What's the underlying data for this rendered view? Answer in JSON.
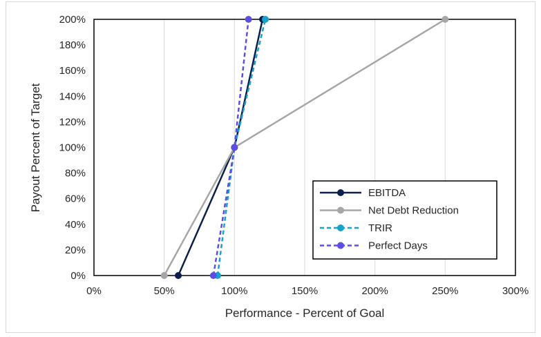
{
  "chart_data": {
    "type": "line",
    "xlabel": "Performance - Percent of Goal",
    "ylabel": "Payout Percent of Target",
    "xlim": [
      0,
      300
    ],
    "ylim": [
      0,
      200
    ],
    "x_ticks": [
      "0%",
      "50%",
      "100%",
      "150%",
      "200%",
      "250%",
      "300%"
    ],
    "y_ticks": [
      "0%",
      "20%",
      "40%",
      "60%",
      "80%",
      "100%",
      "120%",
      "140%",
      "160%",
      "180%",
      "200%"
    ],
    "grid": "vertical",
    "legend_position": "bottom-right",
    "series": [
      {
        "name": "EBITDA",
        "color": "#0b1f4d",
        "dashed": false,
        "points": [
          [
            60,
            0
          ],
          [
            100,
            100
          ],
          [
            120,
            200
          ]
        ]
      },
      {
        "name": "Net Debt Reduction",
        "color": "#a6a6a6",
        "dashed": false,
        "points": [
          [
            50,
            0
          ],
          [
            100,
            100
          ],
          [
            250,
            200
          ]
        ]
      },
      {
        "name": "TRIR",
        "color": "#17a3c9",
        "dashed": true,
        "points": [
          [
            88,
            0
          ],
          [
            100,
            100
          ],
          [
            122,
            200
          ]
        ]
      },
      {
        "name": "Perfect Days",
        "color": "#5b4ee0",
        "dashed": true,
        "points": [
          [
            85,
            0
          ],
          [
            100,
            100
          ],
          [
            110,
            200
          ]
        ]
      }
    ]
  }
}
